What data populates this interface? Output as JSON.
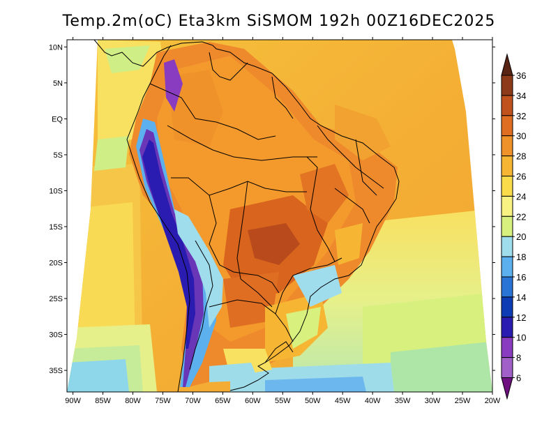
{
  "title": "Temp.2m(oC) Eta3km SiSMOM 192h 00Z16DEC2025",
  "map": {
    "lat_labels": [
      "10N",
      "5N",
      "EQ",
      "5S",
      "10S",
      "15S",
      "20S",
      "25S",
      "30S",
      "35S"
    ],
    "lon_labels": [
      "90W",
      "85W",
      "80W",
      "75W",
      "70W",
      "65W",
      "60W",
      "55W",
      "50W",
      "45W",
      "40W",
      "35W",
      "30W",
      "25W",
      "20W"
    ],
    "lat_values": [
      10,
      5,
      0,
      -5,
      -10,
      -15,
      -20,
      -25,
      -30,
      -35
    ],
    "lon_values": [
      -90,
      -85,
      -80,
      -75,
      -70,
      -65,
      -60,
      -55,
      -50,
      -45,
      -40,
      -35,
      -30,
      -25,
      -20
    ],
    "extent": {
      "lon_min": -91,
      "lon_max": -20,
      "lat_min": -38,
      "lat_max": 11
    }
  },
  "colorbar": {
    "labels": [
      "36",
      "34",
      "32",
      "30",
      "28",
      "26",
      "24",
      "22",
      "20",
      "18",
      "16",
      "14",
      "12",
      "10",
      "8",
      "6"
    ],
    "colors": [
      "#5a2414",
      "#8c3a1a",
      "#c0521e",
      "#e06e22",
      "#f0922a",
      "#f6b634",
      "#fadc4a",
      "#f8f282",
      "#d8f07e",
      "#9fdcec",
      "#5cb0ee",
      "#2a74d6",
      "#0e3cb4",
      "#2a1cb0",
      "#8a3cc0",
      "#a060c8",
      "#6e1080"
    ]
  }
}
